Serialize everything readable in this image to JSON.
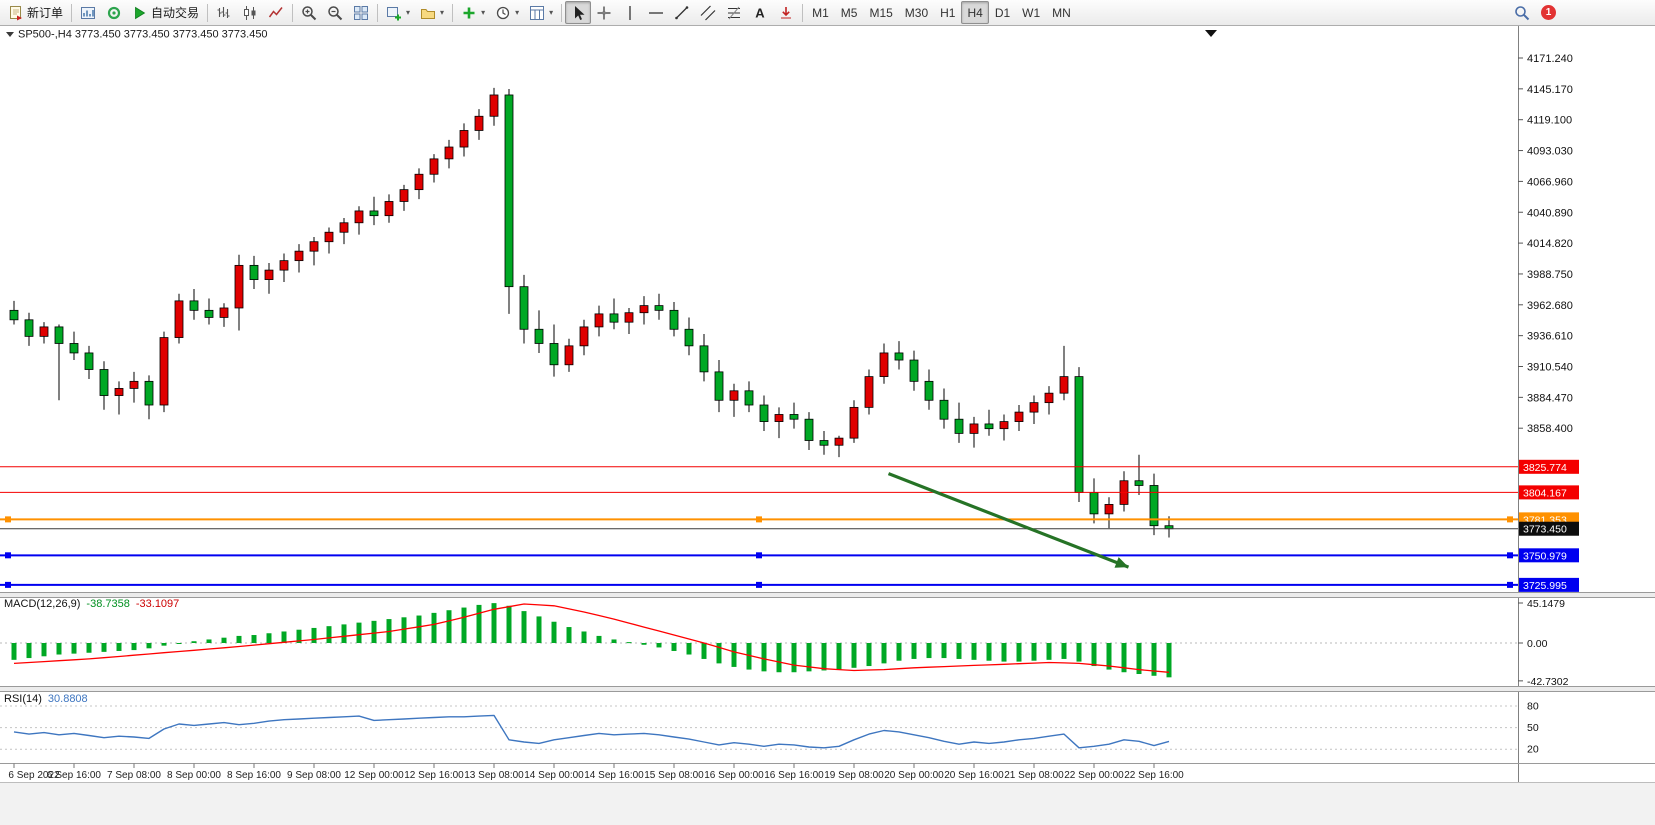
{
  "toolbar": {
    "groups": [
      {
        "name": "orders",
        "items": [
          {
            "name": "new-order-button",
            "icon": "new-order-icon",
            "label": "新订单"
          }
        ]
      },
      {
        "name": "windows",
        "items": [
          {
            "name": "chart-window-button",
            "icon": "chart-window-icon"
          },
          {
            "name": "data-window-button",
            "icon": "data-window-icon"
          },
          {
            "name": "auto-trading-button",
            "icon": "autotrade-play-icon",
            "label": "自动交易"
          }
        ]
      },
      {
        "name": "chart-types",
        "items": [
          {
            "name": "bars-chart-button",
            "icon": "bars-chart-icon"
          },
          {
            "name": "candles-chart-button",
            "icon": "candlestick-icon"
          },
          {
            "name": "line-chart-button",
            "icon": "line-chart-icon"
          }
        ]
      },
      {
        "name": "zoom",
        "items": [
          {
            "name": "zoom-in-button",
            "icon": "zoom-in-icon"
          },
          {
            "name": "zoom-out-button",
            "icon": "zoom-out-icon"
          },
          {
            "name": "tile-windows-button",
            "icon": "tile-windows-icon"
          }
        ]
      },
      {
        "name": "chart-management",
        "items": [
          {
            "name": "new-chart-button",
            "icon": "new-chart-icon",
            "caret": true
          },
          {
            "name": "profiles-button",
            "icon": "profiles-icon",
            "caret": true
          }
        ]
      },
      {
        "name": "indicators",
        "items": [
          {
            "name": "indicators-button",
            "icon": "add-indicator-icon",
            "caret": true
          },
          {
            "name": "periods-button",
            "icon": "clock-icon",
            "caret": true
          },
          {
            "name": "templates-button",
            "icon": "template-icon",
            "caret": true
          }
        ]
      },
      {
        "name": "drawing-tools",
        "items": [
          {
            "name": "cursor-button",
            "icon": "cursor-icon",
            "active": true
          },
          {
            "name": "crosshair-button",
            "icon": "crosshair-icon"
          },
          {
            "name": "vertical-line-button",
            "icon": "vertical-line-icon"
          },
          {
            "name": "horizontal-line-button",
            "icon": "horizontal-line-icon"
          },
          {
            "name": "trendline-button",
            "icon": "trendline-icon"
          },
          {
            "name": "channel-button",
            "icon": "channel-icon"
          },
          {
            "name": "fibonacci-button",
            "icon": "fibonacci-icon"
          },
          {
            "name": "text-button",
            "icon": "text-icon"
          },
          {
            "name": "arrows-button",
            "icon": "arrow-shapes-icon"
          }
        ]
      },
      {
        "name": "timeframes",
        "items": [
          {
            "name": "tf-m1-button",
            "label": "M1",
            "tf": true
          },
          {
            "name": "tf-m5-button",
            "label": "M5",
            "tf": true
          },
          {
            "name": "tf-m15-button",
            "label": "M15",
            "tf": true
          },
          {
            "name": "tf-m30-button",
            "label": "M30",
            "tf": true
          },
          {
            "name": "tf-h1-button",
            "label": "H1",
            "tf": true
          },
          {
            "name": "tf-h4-button",
            "label": "H4",
            "tf": true,
            "active": true
          },
          {
            "name": "tf-d1-button",
            "label": "D1",
            "tf": true
          },
          {
            "name": "tf-w1-button",
            "label": "W1",
            "tf": true
          },
          {
            "name": "tf-mn-button",
            "label": "MN",
            "tf": true
          }
        ]
      }
    ],
    "right_items": [
      {
        "name": "search-button",
        "icon": "search-icon"
      },
      {
        "name": "notifications-badge",
        "label": "1",
        "badge": true
      }
    ]
  },
  "chart_data": {
    "type": "candlestick",
    "symbol": "SP500-,H4",
    "timeframe": "H4",
    "ohlc_header": [
      "3773.450",
      "3773.450",
      "3773.450",
      "3773.450"
    ],
    "price_axis": {
      "ticks": [
        "4171.240",
        "4145.170",
        "4119.100",
        "4093.030",
        "4066.960",
        "4040.890",
        "4014.820",
        "3988.750",
        "3962.680",
        "3936.610",
        "3910.540",
        "3884.470",
        "3858.400"
      ],
      "tick_step": 26.07
    },
    "x_axis": {
      "labels": [
        "6 Sep 2022",
        "6 Sep 16:00",
        "7 Sep 08:00",
        "8 Sep 00:00",
        "8 Sep 16:00",
        "9 Sep 08:00",
        "12 Sep 00:00",
        "12 Sep 16:00",
        "13 Sep 08:00",
        "14 Sep 00:00",
        "14 Sep 16:00",
        "15 Sep 08:00",
        "16 Sep 00:00",
        "16 Sep 16:00",
        "19 Sep 08:00",
        "20 Sep 00:00",
        "20 Sep 16:00",
        "21 Sep 08:00",
        "22 Sep 00:00",
        "22 Sep 16:00"
      ],
      "label_every": 4
    },
    "candles": [
      [
        3958,
        3966,
        3946,
        3950
      ],
      [
        3950,
        3956,
        3928,
        3936
      ],
      [
        3936,
        3948,
        3930,
        3944
      ],
      [
        3944,
        3946,
        3882,
        3930
      ],
      [
        3930,
        3940,
        3916,
        3922
      ],
      [
        3922,
        3928,
        3900,
        3908
      ],
      [
        3908,
        3915,
        3874,
        3886
      ],
      [
        3886,
        3898,
        3870,
        3892
      ],
      [
        3892,
        3906,
        3880,
        3898
      ],
      [
        3898,
        3903,
        3866,
        3878
      ],
      [
        3878,
        3940,
        3872,
        3935
      ],
      [
        3935,
        3972,
        3930,
        3966
      ],
      [
        3966,
        3976,
        3950,
        3958
      ],
      [
        3958,
        3968,
        3946,
        3952
      ],
      [
        3952,
        3964,
        3944,
        3960
      ],
      [
        3960,
        4005,
        3941,
        3996
      ],
      [
        3996,
        4004,
        3976,
        3984
      ],
      [
        3984,
        3998,
        3972,
        3992
      ],
      [
        3992,
        4006,
        3982,
        4000
      ],
      [
        4000,
        4014,
        3990,
        4008
      ],
      [
        4008,
        4020,
        3996,
        4016
      ],
      [
        4016,
        4028,
        4006,
        4024
      ],
      [
        4024,
        4036,
        4014,
        4032
      ],
      [
        4032,
        4046,
        4022,
        4042
      ],
      [
        4042,
        4054,
        4030,
        4038
      ],
      [
        4038,
        4056,
        4032,
        4050
      ],
      [
        4050,
        4064,
        4042,
        4060
      ],
      [
        4060,
        4078,
        4052,
        4073
      ],
      [
        4073,
        4090,
        4066,
        4086
      ],
      [
        4086,
        4102,
        4078,
        4096
      ],
      [
        4096,
        4116,
        4088,
        4110
      ],
      [
        4110,
        4128,
        4102,
        4122
      ],
      [
        4122,
        4146,
        4114,
        4140
      ],
      [
        4140,
        4145,
        3955,
        3978
      ],
      [
        3978,
        3988,
        3930,
        3942
      ],
      [
        3942,
        3958,
        3922,
        3930
      ],
      [
        3930,
        3946,
        3902,
        3912
      ],
      [
        3912,
        3934,
        3906,
        3928
      ],
      [
        3928,
        3950,
        3920,
        3944
      ],
      [
        3944,
        3962,
        3936,
        3955
      ],
      [
        3955,
        3968,
        3942,
        3948
      ],
      [
        3948,
        3960,
        3938,
        3956
      ],
      [
        3956,
        3970,
        3946,
        3962
      ],
      [
        3962,
        3972,
        3950,
        3958
      ],
      [
        3958,
        3965,
        3936,
        3942
      ],
      [
        3942,
        3952,
        3920,
        3928
      ],
      [
        3928,
        3938,
        3898,
        3906
      ],
      [
        3906,
        3916,
        3872,
        3882
      ],
      [
        3882,
        3896,
        3868,
        3890
      ],
      [
        3890,
        3898,
        3872,
        3878
      ],
      [
        3878,
        3886,
        3856,
        3864
      ],
      [
        3864,
        3876,
        3850,
        3870
      ],
      [
        3870,
        3880,
        3858,
        3866
      ],
      [
        3866,
        3872,
        3840,
        3848
      ],
      [
        3848,
        3856,
        3836,
        3844
      ],
      [
        3844,
        3852,
        3834,
        3850
      ],
      [
        3850,
        3882,
        3846,
        3876
      ],
      [
        3876,
        3908,
        3870,
        3902
      ],
      [
        3902,
        3930,
        3896,
        3922
      ],
      [
        3922,
        3932,
        3908,
        3916
      ],
      [
        3916,
        3924,
        3890,
        3898
      ],
      [
        3898,
        3908,
        3874,
        3882
      ],
      [
        3882,
        3892,
        3858,
        3866
      ],
      [
        3866,
        3880,
        3846,
        3854
      ],
      [
        3854,
        3868,
        3842,
        3862
      ],
      [
        3862,
        3874,
        3852,
        3858
      ],
      [
        3858,
        3870,
        3848,
        3864
      ],
      [
        3864,
        3878,
        3856,
        3872
      ],
      [
        3872,
        3886,
        3862,
        3880
      ],
      [
        3880,
        3894,
        3870,
        3888
      ],
      [
        3888,
        3928,
        3882,
        3902
      ],
      [
        3902,
        3910,
        3796,
        3804
      ],
      [
        3804,
        3816,
        3778,
        3786
      ],
      [
        3786,
        3800,
        3774,
        3794
      ],
      [
        3794,
        3822,
        3788,
        3814
      ],
      [
        3814,
        3836,
        3802,
        3810
      ],
      [
        3810,
        3820,
        3768,
        3776
      ],
      [
        3776,
        3784,
        3766,
        3773.45
      ]
    ],
    "hlines": [
      {
        "price": 3825.774,
        "label": "3825.774",
        "color": "#f40000",
        "width": 1
      },
      {
        "price": 3804.167,
        "label": "3804.167",
        "color": "#f40000",
        "width": 1
      },
      {
        "price": 3781.353,
        "label": "3781.353",
        "color": "#ff9100",
        "width": 2,
        "handles": true
      },
      {
        "price": 3750.979,
        "label": "3750.979",
        "color": "#0000f0",
        "width": 2,
        "handles": true
      },
      {
        "price": 3725.995,
        "label": "3725.995",
        "color": "#0000f0",
        "width": 2,
        "handles": true
      }
    ],
    "current_price": {
      "value": 3773.45,
      "label": "3773.450",
      "box_color": "#0d0d0d"
    },
    "arrow": {
      "from_bar": 58.3,
      "from_price": 3820,
      "to_bar": 74.3,
      "to_price": 3741,
      "color": "#267326"
    },
    "colors": {
      "bull": "#e00000",
      "bear": "#00a824",
      "wick": "#000000",
      "background": "#ffffff"
    },
    "macd": {
      "label": "MACD(12,26,9)",
      "values_text": [
        "-38.7358",
        "-33.1097"
      ],
      "axis_labels": [
        "45.1479",
        "0.00",
        "-42.7302"
      ],
      "histogram_color": "#00a824",
      "signal_color": "#ff0000",
      "histogram": [
        -19,
        -17,
        -15,
        -13,
        -12,
        -11,
        -10,
        -9,
        -8,
        -6,
        -3,
        0,
        2,
        4,
        6,
        8,
        9,
        11,
        13,
        15,
        17,
        19,
        21,
        23,
        25,
        27,
        29,
        31,
        34,
        37,
        40,
        43,
        45,
        42,
        36,
        30,
        24,
        18,
        13,
        8,
        4,
        1,
        -2,
        -5,
        -9,
        -13,
        -18,
        -23,
        -27,
        -30,
        -32,
        -33,
        -33,
        -32,
        -31,
        -30,
        -28,
        -26,
        -23,
        -20,
        -18,
        -17,
        -17,
        -18,
        -19,
        -20,
        -21,
        -21,
        -20,
        -19,
        -18,
        -21,
        -26,
        -30,
        -33,
        -35,
        -37,
        -38.74
      ],
      "signal_points": [
        [
          0,
          -23
        ],
        [
          5,
          -18
        ],
        [
          10,
          -11
        ],
        [
          15,
          -4
        ],
        [
          20,
          4
        ],
        [
          25,
          13
        ],
        [
          28,
          21
        ],
        [
          30,
          29
        ],
        [
          32,
          38
        ],
        [
          34,
          44
        ],
        [
          36,
          42
        ],
        [
          38,
          35
        ],
        [
          40,
          27
        ],
        [
          42,
          18
        ],
        [
          44,
          9
        ],
        [
          46,
          0
        ],
        [
          48,
          -10
        ],
        [
          50,
          -18
        ],
        [
          52,
          -25
        ],
        [
          54,
          -29
        ],
        [
          56,
          -31
        ],
        [
          58,
          -30
        ],
        [
          60,
          -28
        ],
        [
          63,
          -26
        ],
        [
          66,
          -24
        ],
        [
          69,
          -22
        ],
        [
          71,
          -23
        ],
        [
          73,
          -26
        ],
        [
          75,
          -30
        ],
        [
          77,
          -33.11
        ]
      ]
    },
    "rsi": {
      "label": "RSI(14)",
      "value_text": "30.8808",
      "levels": [
        "80",
        "50",
        "20"
      ],
      "line_color": "#3e76c0",
      "values": [
        44,
        41,
        43,
        40,
        42,
        39,
        36,
        38,
        37,
        35,
        48,
        55,
        53,
        55,
        57,
        54,
        56,
        59,
        61,
        62,
        63,
        64,
        65,
        66,
        60,
        61,
        62,
        63,
        64,
        65,
        65,
        66,
        67,
        33,
        30,
        28,
        33,
        36,
        39,
        42,
        40,
        41,
        42,
        40,
        37,
        34,
        30,
        26,
        29,
        27,
        24,
        27,
        26,
        23,
        22,
        24,
        33,
        41,
        46,
        44,
        40,
        36,
        31,
        27,
        30,
        28,
        30,
        33,
        35,
        38,
        41,
        22,
        24,
        27,
        33,
        31,
        25,
        30.88
      ]
    }
  }
}
